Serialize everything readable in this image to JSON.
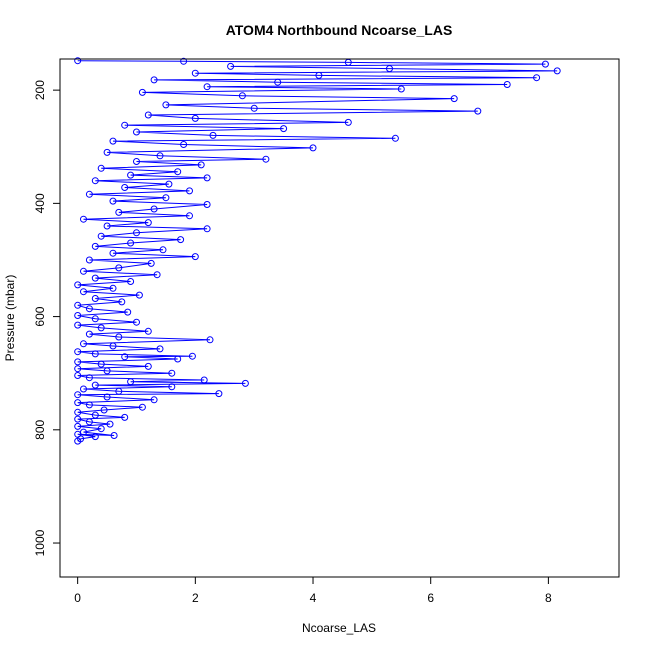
{
  "chart_data": {
    "type": "line",
    "title": "ATOM4 Northbound Ncoarse_LAS",
    "xlabel": "Ncoarse_LAS",
    "ylabel": "Pressure (mbar)",
    "xlim": [
      -0.3,
      9.2
    ],
    "ylim": [
      1060,
      145
    ],
    "y_axis_inverted": true,
    "x_ticks": [
      0,
      2,
      4,
      6,
      8
    ],
    "y_ticks": [
      200,
      400,
      600,
      800,
      1000
    ],
    "grid": false,
    "legend": "none",
    "series": [
      {
        "color": "#0000ff",
        "marker": "open-circle",
        "points": [
          [
            0.0,
            820
          ],
          [
            0.05,
            816
          ],
          [
            0.3,
            812
          ],
          [
            0.0,
            808
          ],
          [
            0.62,
            810
          ],
          [
            0.1,
            804
          ],
          [
            0.4,
            798
          ],
          [
            0.0,
            794
          ],
          [
            0.55,
            790
          ],
          [
            0.2,
            786
          ],
          [
            0.0,
            781
          ],
          [
            0.8,
            778
          ],
          [
            0.3,
            774
          ],
          [
            0.0,
            769
          ],
          [
            0.45,
            765
          ],
          [
            1.1,
            760
          ],
          [
            0.2,
            756
          ],
          [
            0.0,
            752
          ],
          [
            1.3,
            747
          ],
          [
            0.5,
            742
          ],
          [
            0.0,
            738
          ],
          [
            2.4,
            736
          ],
          [
            0.7,
            732
          ],
          [
            0.1,
            728
          ],
          [
            1.6,
            724
          ],
          [
            0.3,
            721
          ],
          [
            2.85,
            718
          ],
          [
            0.9,
            715
          ],
          [
            2.15,
            712
          ],
          [
            0.2,
            708
          ],
          [
            0.0,
            704
          ],
          [
            1.6,
            700
          ],
          [
            0.5,
            696
          ],
          [
            0.0,
            692
          ],
          [
            1.2,
            688
          ],
          [
            0.4,
            684
          ],
          [
            0.0,
            680
          ],
          [
            1.7,
            675
          ],
          [
            0.8,
            671
          ],
          [
            1.95,
            670
          ],
          [
            0.3,
            666
          ],
          [
            0.0,
            662
          ],
          [
            1.4,
            657
          ],
          [
            0.6,
            652
          ],
          [
            0.1,
            648
          ],
          [
            2.25,
            641
          ],
          [
            0.7,
            636
          ],
          [
            0.2,
            631
          ],
          [
            1.2,
            626
          ],
          [
            0.4,
            620
          ],
          [
            0.0,
            615
          ],
          [
            1.0,
            610
          ],
          [
            0.3,
            604
          ],
          [
            0.0,
            598
          ],
          [
            0.85,
            592
          ],
          [
            0.2,
            586
          ],
          [
            0.0,
            580
          ],
          [
            0.75,
            574
          ],
          [
            0.3,
            568
          ],
          [
            1.05,
            562
          ],
          [
            0.1,
            556
          ],
          [
            0.6,
            550
          ],
          [
            0.0,
            544
          ],
          [
            0.9,
            538
          ],
          [
            0.3,
            532
          ],
          [
            1.35,
            526
          ],
          [
            0.1,
            520
          ],
          [
            0.7,
            514
          ],
          [
            1.25,
            506
          ],
          [
            0.2,
            500
          ],
          [
            2.0,
            494
          ],
          [
            0.6,
            488
          ],
          [
            1.45,
            482
          ],
          [
            0.3,
            476
          ],
          [
            0.9,
            470
          ],
          [
            1.75,
            464
          ],
          [
            0.4,
            458
          ],
          [
            1.0,
            452
          ],
          [
            2.2,
            445
          ],
          [
            0.5,
            440
          ],
          [
            1.2,
            434
          ],
          [
            0.1,
            428
          ],
          [
            1.9,
            422
          ],
          [
            0.7,
            416
          ],
          [
            1.3,
            410
          ],
          [
            2.2,
            402
          ],
          [
            0.6,
            396
          ],
          [
            1.5,
            390
          ],
          [
            0.2,
            384
          ],
          [
            1.9,
            378
          ],
          [
            0.8,
            372
          ],
          [
            1.55,
            366
          ],
          [
            0.3,
            360
          ],
          [
            2.2,
            355
          ],
          [
            0.9,
            350
          ],
          [
            1.7,
            344
          ],
          [
            0.4,
            338
          ],
          [
            2.1,
            332
          ],
          [
            1.0,
            326
          ],
          [
            3.2,
            322
          ],
          [
            1.4,
            316
          ],
          [
            0.5,
            310
          ],
          [
            4.0,
            302
          ],
          [
            1.8,
            296
          ],
          [
            0.6,
            290
          ],
          [
            5.4,
            285
          ],
          [
            2.3,
            280
          ],
          [
            1.0,
            274
          ],
          [
            3.5,
            268
          ],
          [
            0.8,
            262
          ],
          [
            4.6,
            257
          ],
          [
            2.0,
            250
          ],
          [
            1.2,
            244
          ],
          [
            6.8,
            237
          ],
          [
            3.0,
            232
          ],
          [
            1.5,
            226
          ],
          [
            6.4,
            215
          ],
          [
            2.8,
            210
          ],
          [
            1.1,
            204
          ],
          [
            5.5,
            198
          ],
          [
            2.2,
            194
          ],
          [
            7.3,
            190
          ],
          [
            3.4,
            186
          ],
          [
            1.3,
            182
          ],
          [
            7.8,
            178
          ],
          [
            4.1,
            174
          ],
          [
            2.0,
            170
          ],
          [
            8.15,
            166
          ],
          [
            5.3,
            162
          ],
          [
            2.6,
            158
          ],
          [
            7.95,
            154
          ],
          [
            4.6,
            151
          ],
          [
            1.8,
            149
          ],
          [
            0.0,
            148
          ]
        ]
      }
    ]
  }
}
